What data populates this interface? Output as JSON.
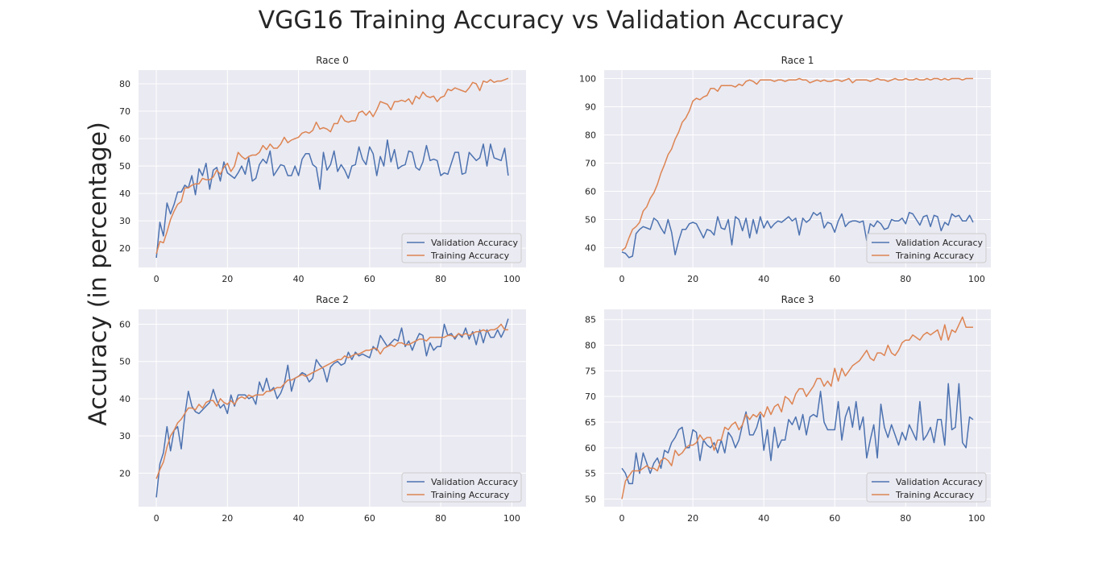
{
  "suptitle": "VGG16 Training Accuracy vs Validation Accuracy",
  "ylabel": "Accuracy (in percentage)",
  "colors": {
    "validation": "#4c72b0",
    "training": "#dd8452",
    "background": "#eaeaf2",
    "grid": "#ffffff"
  },
  "chart_data": [
    {
      "type": "line",
      "title": "Race 0",
      "xlim": [
        -5,
        104
      ],
      "ylim": [
        13,
        85
      ],
      "xticks": [
        0,
        20,
        40,
        60,
        80,
        100
      ],
      "yticks": [
        20,
        30,
        40,
        50,
        60,
        70,
        80
      ],
      "legend": "bottom-right",
      "grid": true,
      "series": [
        {
          "name": "Validation Accuracy",
          "color": "#4c72b0",
          "values": [
            16.5,
            29.5,
            24.5,
            36.5,
            32.5,
            36.0,
            40.5,
            40.5,
            43.0,
            42.0,
            46.5,
            39.5,
            49.0,
            46.5,
            51.0,
            41.5,
            48.5,
            49.5,
            44.5,
            51.5,
            47.5,
            46.5,
            45.5,
            47.5,
            50.0,
            47.0,
            53.0,
            44.5,
            45.5,
            50.5,
            52.5,
            51.0,
            55.5,
            46.5,
            48.5,
            50.5,
            50.0,
            46.5,
            46.5,
            50.0,
            46.5,
            52.5,
            54.5,
            54.5,
            50.5,
            49.5,
            41.5,
            55.0,
            48.5,
            50.5,
            55.5,
            48.0,
            50.5,
            48.5,
            45.5,
            50.0,
            50.5,
            57.0,
            52.5,
            50.5,
            57.0,
            54.5,
            46.5,
            53.5,
            50.0,
            59.5,
            51.5,
            56.0,
            49.0,
            50.0,
            50.5,
            55.5,
            55.0,
            49.5,
            48.5,
            51.5,
            57.5,
            52.0,
            52.5,
            52.0,
            46.5,
            47.5,
            47.0,
            51.0,
            55.0,
            55.0,
            47.0,
            47.5,
            55.0,
            53.5,
            52.0,
            53.0,
            58.0,
            50.0,
            58.0,
            53.0,
            52.5,
            52.0,
            56.5,
            46.5
          ]
        },
        {
          "name": "Training Accuracy",
          "color": "#dd8452",
          "values": [
            18.0,
            22.5,
            22.0,
            26.0,
            30.5,
            33.5,
            36.0,
            37.0,
            42.0,
            42.0,
            43.0,
            43.5,
            43.5,
            45.5,
            45.0,
            45.0,
            46.0,
            48.5,
            47.0,
            49.5,
            51.0,
            48.0,
            50.0,
            55.0,
            53.5,
            52.5,
            53.5,
            54.0,
            54.0,
            55.0,
            57.5,
            56.0,
            58.0,
            56.5,
            56.5,
            58.0,
            60.5,
            58.5,
            59.5,
            60.0,
            60.5,
            62.0,
            62.5,
            62.0,
            63.0,
            66.0,
            63.5,
            64.0,
            63.5,
            62.5,
            65.5,
            65.5,
            68.5,
            66.5,
            66.0,
            66.5,
            66.5,
            69.5,
            70.0,
            68.5,
            70.0,
            68.0,
            70.5,
            73.5,
            73.0,
            72.5,
            70.5,
            73.5,
            73.5,
            74.0,
            73.5,
            74.5,
            72.5,
            75.5,
            74.5,
            77.0,
            75.5,
            75.0,
            75.5,
            73.5,
            75.0,
            75.5,
            78.0,
            77.5,
            78.5,
            78.0,
            77.5,
            77.0,
            78.5,
            80.5,
            80.0,
            77.5,
            81.0,
            80.5,
            81.5,
            80.5,
            81.0,
            81.0,
            81.5,
            82.0
          ]
        }
      ]
    },
    {
      "type": "line",
      "title": "Race 1",
      "xlim": [
        -5,
        104
      ],
      "ylim": [
        33,
        103
      ],
      "xticks": [
        0,
        20,
        40,
        60,
        80,
        100
      ],
      "yticks": [
        40,
        50,
        60,
        70,
        80,
        90,
        100
      ],
      "legend": "bottom-right",
      "grid": true,
      "series": [
        {
          "name": "Validation Accuracy",
          "color": "#4c72b0",
          "values": [
            38.5,
            38.0,
            36.5,
            37.0,
            45.0,
            46.5,
            47.5,
            47.0,
            46.5,
            50.5,
            49.5,
            47.0,
            45.0,
            50.0,
            45.5,
            37.5,
            42.5,
            46.5,
            46.5,
            48.5,
            49.0,
            48.5,
            46.0,
            43.5,
            46.5,
            46.0,
            44.5,
            51.0,
            47.0,
            46.5,
            50.0,
            41.0,
            51.0,
            50.0,
            46.0,
            50.5,
            43.5,
            50.0,
            45.0,
            51.0,
            47.0,
            49.5,
            47.0,
            48.5,
            49.5,
            49.0,
            50.0,
            51.0,
            49.5,
            50.5,
            44.5,
            50.5,
            49.0,
            50.0,
            52.5,
            51.5,
            52.5,
            47.0,
            49.0,
            48.5,
            45.5,
            49.5,
            52.0,
            47.5,
            49.0,
            49.5,
            49.5,
            49.0,
            49.5,
            42.5,
            48.5,
            47.5,
            49.5,
            48.5,
            46.5,
            47.0,
            50.0,
            49.5,
            49.5,
            50.5,
            48.5,
            52.5,
            52.0,
            50.0,
            48.0,
            51.0,
            51.5,
            47.5,
            51.5,
            51.0,
            46.0,
            49.0,
            48.0,
            52.0,
            51.0,
            51.5,
            49.5,
            49.5,
            51.5,
            49.0
          ]
        },
        {
          "name": "Training Accuracy",
          "color": "#dd8452",
          "values": [
            39.0,
            40.0,
            43.5,
            46.5,
            47.5,
            49.0,
            53.0,
            54.5,
            57.5,
            59.5,
            62.5,
            66.5,
            69.5,
            73.0,
            75.0,
            78.5,
            81.0,
            84.5,
            86.0,
            88.5,
            92.0,
            93.0,
            92.5,
            93.5,
            94.0,
            96.5,
            96.5,
            95.5,
            97.5,
            97.5,
            97.5,
            97.5,
            97.0,
            98.0,
            97.5,
            99.0,
            99.5,
            99.0,
            98.0,
            99.5,
            99.5,
            99.5,
            99.5,
            99.0,
            99.5,
            99.5,
            99.0,
            99.5,
            99.5,
            99.5,
            100.0,
            99.5,
            99.5,
            98.5,
            99.0,
            99.5,
            99.0,
            99.5,
            99.0,
            99.0,
            99.5,
            99.5,
            99.0,
            99.5,
            100.0,
            98.5,
            99.5,
            99.5,
            99.5,
            99.5,
            99.0,
            99.5,
            100.0,
            99.5,
            99.5,
            99.0,
            99.5,
            100.0,
            99.5,
            99.5,
            100.0,
            99.5,
            99.5,
            100.0,
            99.5,
            99.5,
            100.0,
            99.5,
            100.0,
            100.0,
            99.5,
            100.0,
            99.5,
            100.0,
            100.0,
            100.0,
            99.5,
            100.0,
            100.0,
            100.0
          ]
        }
      ]
    },
    {
      "type": "line",
      "title": "Race 2",
      "xlim": [
        -5,
        104
      ],
      "ylim": [
        11,
        64
      ],
      "xticks": [
        0,
        20,
        40,
        60,
        80,
        100
      ],
      "yticks": [
        20,
        30,
        40,
        50,
        60
      ],
      "legend": "bottom-right",
      "grid": true,
      "series": [
        {
          "name": "Validation Accuracy",
          "color": "#4c72b0",
          "values": [
            13.5,
            22.5,
            25.5,
            32.5,
            26.0,
            31.5,
            32.5,
            26.5,
            35.5,
            42.0,
            38.0,
            36.5,
            36.0,
            37.0,
            38.0,
            39.0,
            42.5,
            39.5,
            37.5,
            38.5,
            36.0,
            41.0,
            38.0,
            41.0,
            41.0,
            41.0,
            40.0,
            40.5,
            38.5,
            44.5,
            42.0,
            45.5,
            42.0,
            43.0,
            40.0,
            41.5,
            44.0,
            49.0,
            42.0,
            45.5,
            46.0,
            47.0,
            46.5,
            44.5,
            45.5,
            50.5,
            49.0,
            48.0,
            44.5,
            48.5,
            49.5,
            50.0,
            49.0,
            49.5,
            52.5,
            50.5,
            52.5,
            51.5,
            52.0,
            51.5,
            51.0,
            54.0,
            53.0,
            57.0,
            55.5,
            54.0,
            55.0,
            56.0,
            55.5,
            59.0,
            54.0,
            55.5,
            53.0,
            55.5,
            57.5,
            57.0,
            51.5,
            55.0,
            53.0,
            54.0,
            54.0,
            60.0,
            57.0,
            57.5,
            56.0,
            57.5,
            56.5,
            59.0,
            56.0,
            58.0,
            54.5,
            58.5,
            55.0,
            58.5,
            56.5,
            56.5,
            58.5,
            56.5,
            58.5,
            61.5
          ]
        },
        {
          "name": "Training Accuracy",
          "color": "#dd8452",
          "values": [
            18.5,
            21.0,
            23.0,
            27.0,
            30.0,
            31.5,
            33.5,
            34.5,
            36.0,
            37.5,
            37.5,
            37.0,
            38.5,
            37.5,
            39.0,
            39.5,
            39.5,
            38.0,
            40.0,
            39.0,
            38.5,
            39.5,
            38.5,
            40.0,
            40.5,
            40.0,
            41.0,
            40.5,
            41.0,
            41.0,
            41.0,
            42.0,
            42.0,
            42.5,
            43.0,
            43.0,
            44.0,
            45.0,
            45.0,
            45.5,
            46.0,
            46.5,
            46.0,
            46.5,
            47.0,
            47.5,
            48.0,
            48.5,
            49.0,
            49.5,
            50.0,
            50.5,
            50.5,
            51.5,
            51.0,
            51.5,
            52.0,
            52.0,
            52.5,
            53.0,
            53.0,
            53.5,
            53.5,
            52.0,
            53.5,
            54.0,
            54.5,
            54.0,
            55.0,
            55.0,
            54.5,
            54.5,
            55.0,
            55.5,
            56.0,
            56.0,
            55.5,
            56.5,
            56.5,
            56.5,
            56.5,
            56.5,
            57.0,
            57.0,
            56.5,
            57.5,
            57.0,
            57.5,
            57.0,
            57.5,
            58.0,
            58.0,
            58.5,
            58.0,
            58.5,
            58.5,
            59.0,
            60.0,
            58.5,
            58.5
          ]
        }
      ]
    },
    {
      "type": "line",
      "title": "Race 3",
      "xlim": [
        -5,
        104
      ],
      "ylim": [
        48.5,
        87
      ],
      "xticks": [
        0,
        20,
        40,
        60,
        80,
        100
      ],
      "yticks": [
        50,
        55,
        60,
        65,
        70,
        75,
        80,
        85
      ],
      "legend": "bottom-right",
      "grid": true,
      "series": [
        {
          "name": "Validation Accuracy",
          "color": "#4c72b0",
          "values": [
            56.0,
            55.0,
            53.0,
            53.0,
            59.0,
            55.0,
            59.0,
            57.0,
            55.0,
            57.0,
            58.0,
            56.0,
            59.5,
            59.0,
            61.0,
            62.0,
            63.5,
            64.0,
            60.0,
            60.0,
            63.5,
            63.0,
            57.5,
            61.5,
            60.5,
            60.0,
            61.0,
            59.0,
            61.5,
            59.0,
            63.0,
            62.0,
            60.0,
            61.5,
            64.5,
            67.0,
            62.5,
            62.5,
            64.0,
            66.5,
            59.5,
            63.5,
            57.5,
            64.0,
            60.0,
            61.5,
            61.5,
            65.5,
            64.5,
            66.0,
            63.5,
            66.5,
            62.5,
            66.0,
            66.5,
            66.0,
            71.0,
            65.0,
            63.5,
            63.5,
            63.5,
            69.0,
            61.5,
            66.0,
            68.0,
            64.0,
            69.0,
            63.5,
            66.0,
            58.0,
            61.5,
            64.5,
            58.0,
            68.5,
            64.0,
            62.0,
            64.5,
            62.5,
            60.5,
            63.0,
            61.5,
            64.5,
            63.0,
            61.5,
            69.0,
            61.5,
            62.5,
            64.0,
            61.0,
            65.5,
            65.5,
            60.5,
            72.5,
            63.5,
            64.0,
            72.5,
            61.0,
            60.0,
            66.0,
            65.5
          ]
        },
        {
          "name": "Training Accuracy",
          "color": "#dd8452",
          "values": [
            50.0,
            53.5,
            54.5,
            55.5,
            55.5,
            55.5,
            56.0,
            56.5,
            56.0,
            56.0,
            55.5,
            57.5,
            58.0,
            57.5,
            56.5,
            59.5,
            58.5,
            59.0,
            60.0,
            60.5,
            60.5,
            61.0,
            62.5,
            61.5,
            62.0,
            62.0,
            59.5,
            61.5,
            61.5,
            64.0,
            63.5,
            64.5,
            65.0,
            63.5,
            64.5,
            66.5,
            65.5,
            66.5,
            66.0,
            67.0,
            66.0,
            68.0,
            66.5,
            68.0,
            68.5,
            67.0,
            70.0,
            69.5,
            68.5,
            70.5,
            71.5,
            71.5,
            70.0,
            71.0,
            72.0,
            73.5,
            73.5,
            72.0,
            73.0,
            72.0,
            75.5,
            73.0,
            75.5,
            74.0,
            75.0,
            76.0,
            76.5,
            77.0,
            78.0,
            79.0,
            77.5,
            77.0,
            78.5,
            78.5,
            78.0,
            80.0,
            78.5,
            78.0,
            79.0,
            80.5,
            81.0,
            81.0,
            82.0,
            81.5,
            81.0,
            82.0,
            82.5,
            82.0,
            82.5,
            83.0,
            81.0,
            84.0,
            81.0,
            83.0,
            82.5,
            84.0,
            85.5,
            83.5,
            83.5,
            83.5
          ]
        }
      ]
    }
  ]
}
